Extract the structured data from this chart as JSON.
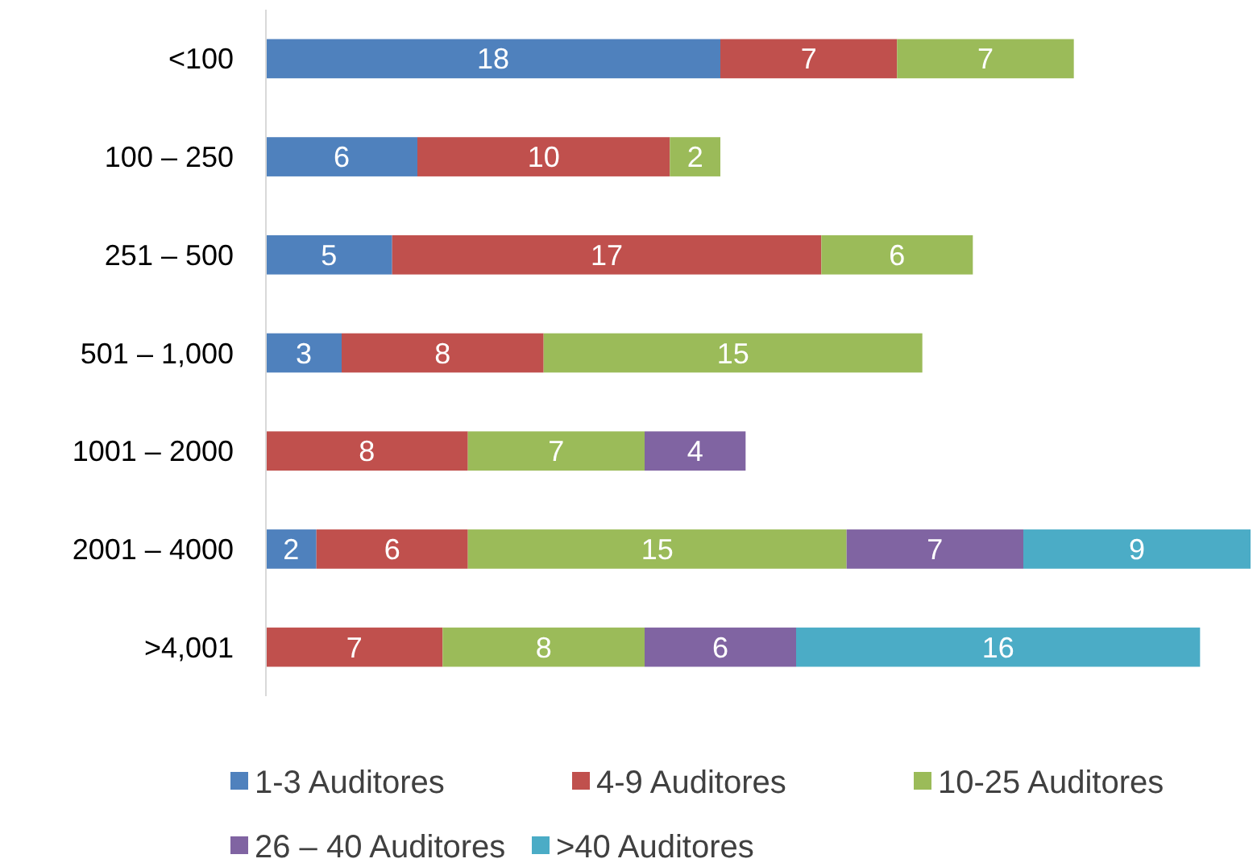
{
  "chart_data": {
    "type": "bar",
    "orientation": "horizontal",
    "stacked": true,
    "data_labels": true,
    "legend": "bottom",
    "categories": [
      "<100",
      "100 – 250",
      "251 – 500",
      "501 – 1,000",
      "1001 – 2000",
      "2001 – 4000",
      ">4,001"
    ],
    "xlim": [
      0,
      39
    ],
    "tick_labels": "y",
    "series": [
      {
        "name": "1-3 Auditores",
        "color": "#4f81bd",
        "values": [
          18,
          6,
          5,
          3,
          null,
          2,
          null
        ]
      },
      {
        "name": "4-9 Auditores",
        "color": "#c0504d",
        "values": [
          7,
          10,
          17,
          8,
          8,
          6,
          7
        ]
      },
      {
        "name": "10-25 Auditores",
        "color": "#9bbb59",
        "values": [
          7,
          2,
          6,
          15,
          7,
          15,
          8
        ]
      },
      {
        "name": "26 – 40 Auditores",
        "color": "#8064a2",
        "values": [
          null,
          null,
          null,
          null,
          4,
          7,
          6
        ]
      },
      {
        "name": ">40 Auditores",
        "color": "#4bacc6",
        "values": [
          null,
          null,
          null,
          null,
          null,
          9,
          16
        ]
      }
    ]
  }
}
